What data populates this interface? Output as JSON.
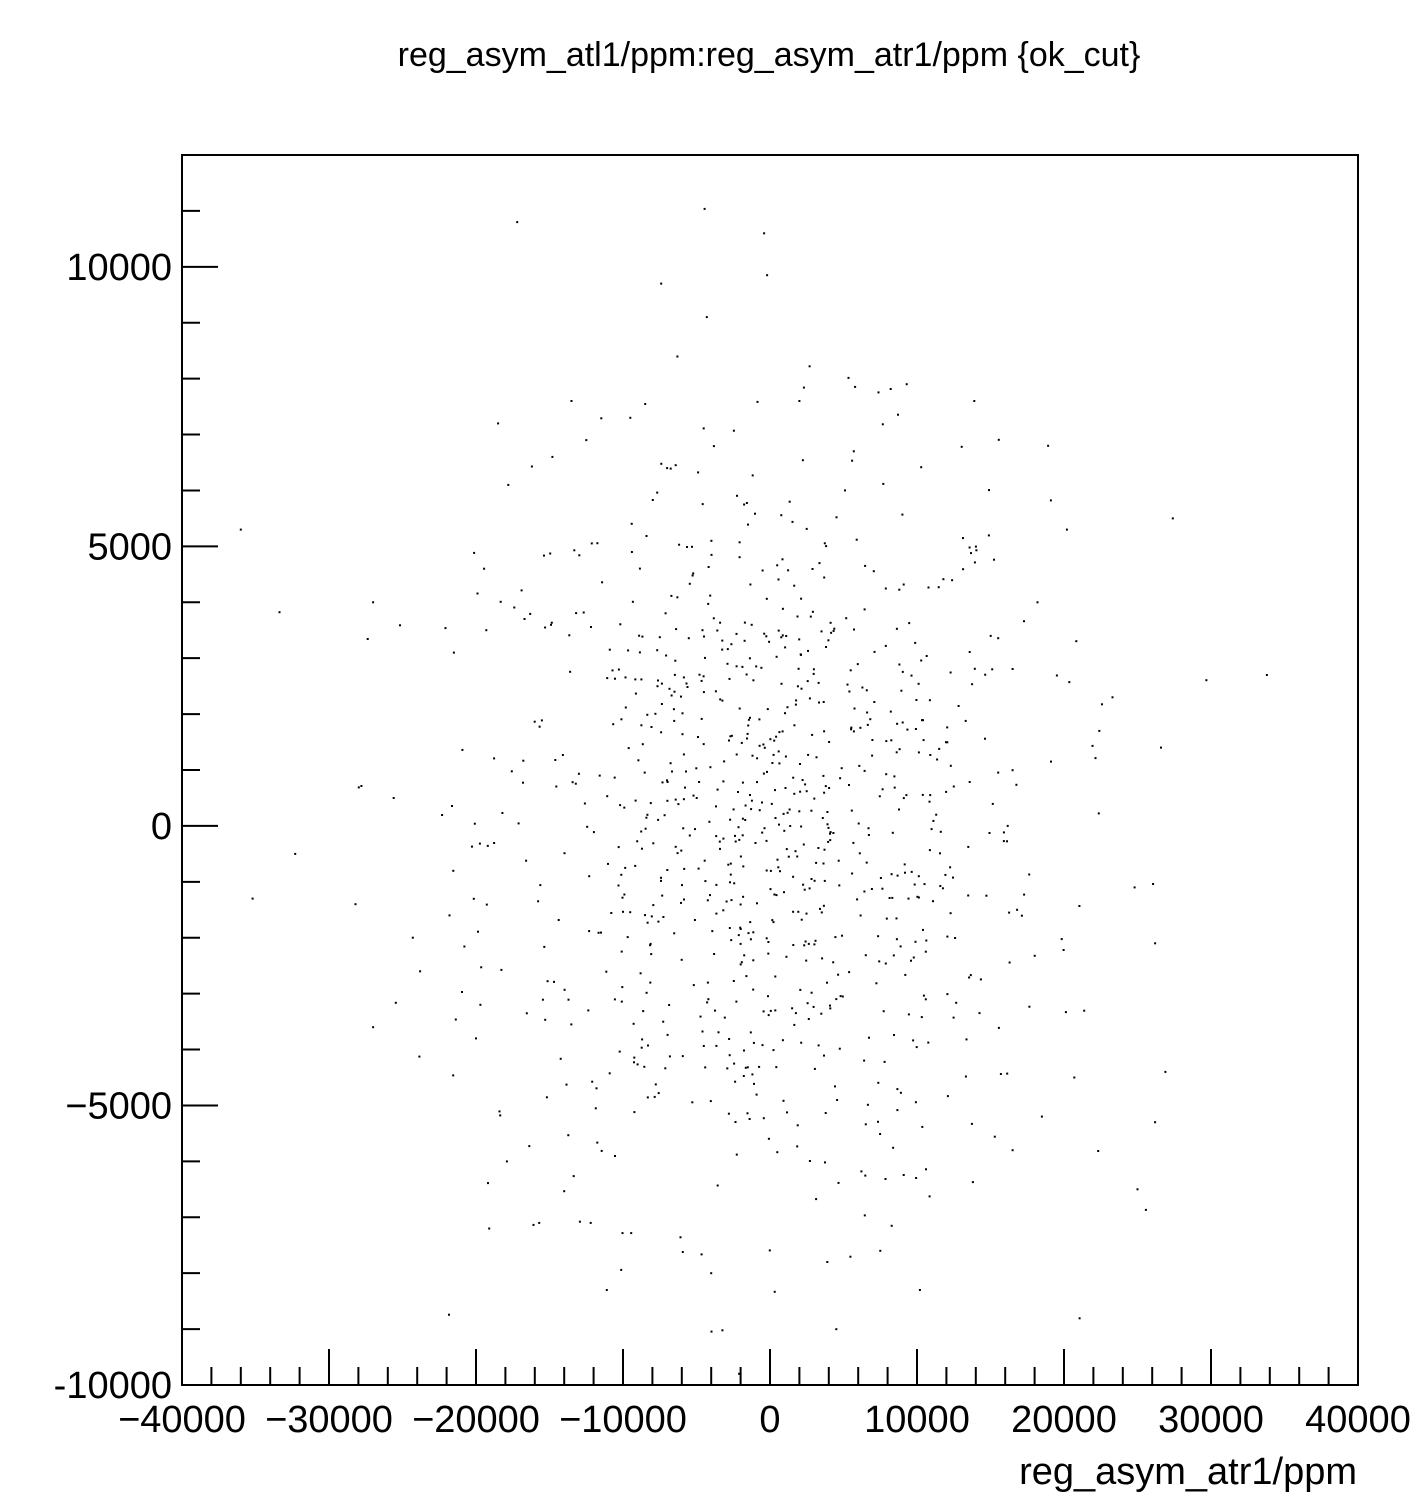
{
  "chart_data": {
    "type": "scatter",
    "title": "reg_asym_atl1/ppm:reg_asym_atr1/ppm {ok_cut}",
    "xlabel": "reg_asym_atr1/ppm",
    "ylabel": "",
    "xlim": [
      -40000,
      40000
    ],
    "ylim": [
      -10000,
      12000
    ],
    "x_ticks": [
      -40000,
      -30000,
      -20000,
      -10000,
      0,
      10000,
      20000,
      30000,
      40000
    ],
    "x_tick_labels": [
      "−40000",
      "−30000",
      "−20000",
      "−10000",
      "0",
      "10000",
      "20000",
      "30000",
      "40000"
    ],
    "y_ticks": [
      -10000,
      -5000,
      0,
      5000,
      10000
    ],
    "y_tick_labels": [
      "-10000",
      "−5000",
      "0",
      "5000",
      "10000"
    ],
    "grid": false,
    "legend": "none",
    "marker_color": "#000000",
    "point_count": 1000,
    "points": [
      [
        -17200,
        10800
      ],
      [
        -400,
        10600
      ],
      [
        -7400,
        9700
      ],
      [
        -200,
        9850
      ],
      [
        -4300,
        9100
      ],
      [
        9300,
        7900
      ],
      [
        -13500,
        7600
      ],
      [
        -9500,
        7300
      ],
      [
        13900,
        7600
      ],
      [
        -18500,
        7200
      ],
      [
        -12500,
        6900
      ],
      [
        2000,
        7600
      ],
      [
        -17800,
        6100
      ],
      [
        -14800,
        6600
      ],
      [
        5700,
        6700
      ],
      [
        -7000,
        6400
      ],
      [
        -36000,
        5300
      ],
      [
        27400,
        5500
      ],
      [
        -27000,
        4000
      ],
      [
        33800,
        2700
      ],
      [
        -25600,
        500
      ],
      [
        -35200,
        -1300
      ],
      [
        -32300,
        -500
      ],
      [
        -28200,
        -1400
      ],
      [
        -27000,
        -3600
      ],
      [
        26600,
        1400
      ],
      [
        26200,
        -2100
      ],
      [
        26900,
        -4400
      ],
      [
        24800,
        -1100
      ],
      [
        26200,
        -5300
      ],
      [
        25000,
        -6500
      ],
      [
        -19100,
        -7200
      ],
      [
        -11100,
        -8300
      ],
      [
        -4000,
        -8000
      ],
      [
        10200,
        -8300
      ],
      [
        3900,
        -7800
      ],
      [
        7500,
        -7600
      ],
      [
        -21500,
        3100
      ],
      [
        -19300,
        3500
      ],
      [
        -16700,
        3700
      ],
      [
        -24300,
        -2000
      ],
      [
        -23800,
        -2600
      ],
      [
        -21800,
        -1600
      ],
      [
        -20000,
        -3800
      ],
      [
        -19700,
        -3200
      ],
      [
        -17900,
        -6000
      ],
      [
        -15700,
        -7100
      ],
      [
        -12200,
        -7100
      ],
      [
        23300,
        2300
      ],
      [
        22400,
        1700
      ],
      [
        20200,
        5300
      ],
      [
        18200,
        4000
      ],
      [
        20700,
        -4500
      ],
      [
        18500,
        -5200
      ],
      [
        16500,
        -5800
      ]
    ]
  }
}
